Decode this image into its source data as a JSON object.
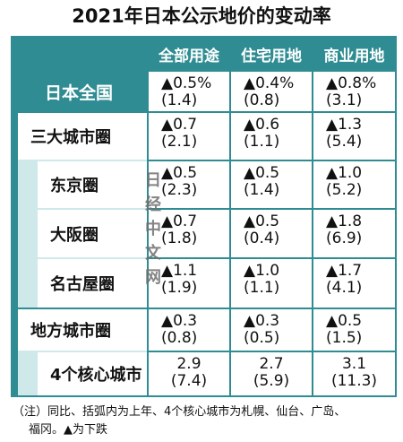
{
  "title": "2021年日本公示地价的变动率",
  "columns": [
    "全部用途",
    "住宅用地",
    "商业用地"
  ],
  "rows": [
    {
      "label": "日本全国",
      "values": [
        {
          "change": "▲0.5%",
          "prev": "(1.4)"
        },
        {
          "change": "▲0.4%",
          "prev": "(0.8)"
        },
        {
          "change": "▲0.8%",
          "prev": "(3.1)"
        }
      ]
    },
    {
      "label": "三大城市圈",
      "values": [
        {
          "change": "▲0.7",
          "prev": "(2.1)"
        },
        {
          "change": "▲0.6",
          "prev": "(1.1)"
        },
        {
          "change": "▲1.3",
          "prev": "(5.4)"
        }
      ]
    },
    {
      "label": "东京圈",
      "values": [
        {
          "change": "▲0.5",
          "prev": "(2.3)"
        },
        {
          "change": "▲0.5",
          "prev": "(1.4)"
        },
        {
          "change": "▲1.0",
          "prev": "(5.2)"
        }
      ]
    },
    {
      "label": "大阪圈",
      "values": [
        {
          "change": "▲0.7",
          "prev": "(1.8)"
        },
        {
          "change": "▲0.5",
          "prev": "(0.4)"
        },
        {
          "change": "▲1.8",
          "prev": "(6.9)"
        }
      ]
    },
    {
      "label": "名古屋圈",
      "values": [
        {
          "change": "▲1.1",
          "prev": "(1.9)"
        },
        {
          "change": "▲1.0",
          "prev": "(1.1)"
        },
        {
          "change": "▲1.7",
          "prev": "(4.1)"
        }
      ]
    },
    {
      "label": "地方城市圈",
      "values": [
        {
          "change": "▲0.3",
          "prev": "(0.8)"
        },
        {
          "change": "▲0.3",
          "prev": "(0.5)"
        },
        {
          "change": "▲0.5",
          "prev": "(1.5)"
        }
      ]
    },
    {
      "label": "4个核心城市",
      "values": [
        {
          "change": "2.9",
          "prev": "(7.4)"
        },
        {
          "change": "2.7",
          "prev": "(5.9)"
        },
        {
          "change": "3.1",
          "prev": "(11.3)"
        }
      ]
    }
  ],
  "watermark": [
    "日",
    "经",
    "中",
    "文",
    "网"
  ],
  "note_line1": "（注）同比、括弧内为上年、4个核心城市为札幌、仙台、广岛、",
  "note_line2": "福冈。▲为下跌"
}
